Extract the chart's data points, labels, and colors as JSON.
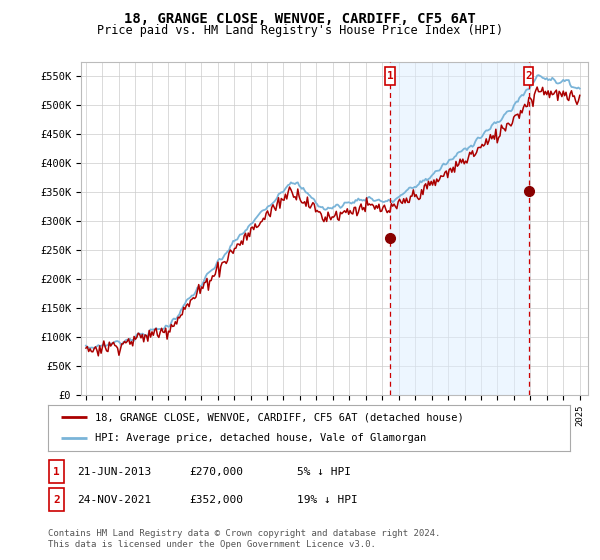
{
  "title": "18, GRANGE CLOSE, WENVOE, CARDIFF, CF5 6AT",
  "subtitle": "Price paid vs. HM Land Registry's House Price Index (HPI)",
  "ylabel_ticks": [
    "£0",
    "£50K",
    "£100K",
    "£150K",
    "£200K",
    "£250K",
    "£300K",
    "£350K",
    "£400K",
    "£450K",
    "£500K",
    "£550K"
  ],
  "ytick_values": [
    0,
    50000,
    100000,
    150000,
    200000,
    250000,
    300000,
    350000,
    400000,
    450000,
    500000,
    550000
  ],
  "ylim": [
    0,
    575000
  ],
  "xlim_start": 1994.7,
  "xlim_end": 2025.5,
  "xtick_years": [
    1995,
    1996,
    1997,
    1998,
    1999,
    2000,
    2001,
    2002,
    2003,
    2004,
    2005,
    2006,
    2007,
    2008,
    2009,
    2010,
    2011,
    2012,
    2013,
    2014,
    2015,
    2016,
    2017,
    2018,
    2019,
    2020,
    2021,
    2022,
    2023,
    2024,
    2025
  ],
  "hpi_color": "#7ab4d8",
  "hpi_fill_color": "#d0e8f5",
  "price_color": "#aa0000",
  "marker1_x": 2013.47,
  "marker1_y": 270000,
  "marker2_x": 2021.9,
  "marker2_y": 352000,
  "marker_color": "#880000",
  "dashed_line_color": "#cc0000",
  "legend_line1": "18, GRANGE CLOSE, WENVOE, CARDIFF, CF5 6AT (detached house)",
  "legend_line2": "HPI: Average price, detached house, Vale of Glamorgan",
  "bg_color": "#ffffff",
  "plot_bg_color": "#ffffff",
  "grid_color": "#cccccc",
  "shade_color": "#ddeeff"
}
